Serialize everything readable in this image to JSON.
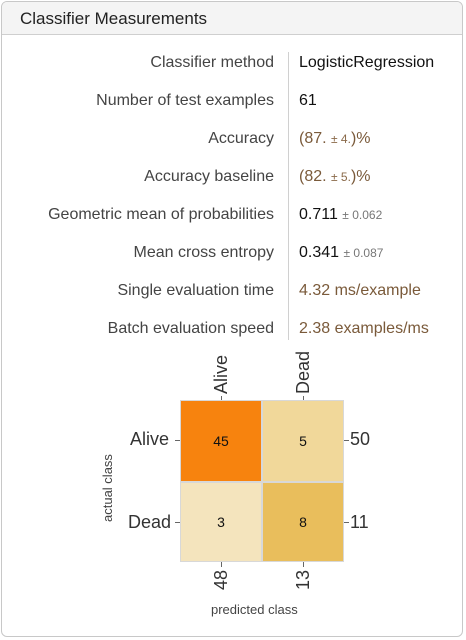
{
  "panel": {
    "title": "Classifier Measurements"
  },
  "measurements": [
    {
      "label": "Classifier method",
      "value": "LogisticRegression",
      "uncert": "",
      "suffix": "",
      "style": "plain"
    },
    {
      "label": "Number of test examples",
      "value": "61",
      "uncert": "",
      "suffix": "",
      "style": "plain"
    },
    {
      "label": "Accuracy",
      "value": "(87. ",
      "uncert": "± 4.",
      "suffix": ")%",
      "style": "accent"
    },
    {
      "label": "Accuracy baseline",
      "value": "(82. ",
      "uncert": "± 5.",
      "suffix": ")%",
      "style": "accent"
    },
    {
      "label": "Geometric mean of probabilities",
      "value": "0.711 ",
      "uncert": "± 0.062",
      "suffix": "",
      "style": "plain"
    },
    {
      "label": "Mean cross entropy",
      "value": "0.341 ",
      "uncert": "± 0.087",
      "suffix": "",
      "style": "plain"
    },
    {
      "label": "Single evaluation time",
      "value": "4.32 ms/example",
      "uncert": "",
      "suffix": "",
      "style": "accent"
    },
    {
      "label": "Batch evaluation speed",
      "value": "2.38 examples/ms",
      "uncert": "",
      "suffix": "",
      "style": "accent"
    }
  ],
  "confusion_matrix": {
    "classes": [
      "Alive",
      "Dead"
    ],
    "cells": [
      [
        45,
        5
      ],
      [
        3,
        8
      ]
    ],
    "row_totals": [
      "50",
      "11"
    ],
    "col_totals": [
      "48",
      "13"
    ],
    "xlabel": "predicted class",
    "ylabel": "actual class",
    "colors": {
      "high": "#f7830e",
      "mid": "#e9be5c",
      "low_a": "#f1d89a",
      "low_b": "#f4e4bd"
    }
  }
}
